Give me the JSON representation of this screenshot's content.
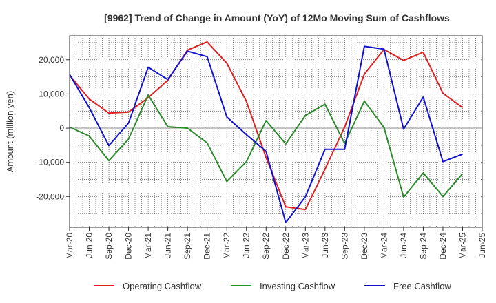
{
  "chart_data": {
    "type": "line",
    "title": "[9962]  Trend of Change in Amount (YoY) of 12Mo Moving Sum of Cashflows",
    "xlabel": "",
    "ylabel": "Amount (million yen)",
    "ylim": [
      -29000,
      27000
    ],
    "yticks": [
      20000,
      10000,
      0,
      -10000,
      -20000
    ],
    "ytick_labels": [
      "20,000",
      "10,000",
      "0",
      "-10,000",
      "-20,000"
    ],
    "x": [
      "Mar-20",
      "Jun-20",
      "Sep-20",
      "Dec-20",
      "Mar-21",
      "Jun-21",
      "Sep-21",
      "Dec-21",
      "Mar-22",
      "Jun-22",
      "Sep-22",
      "Dec-22",
      "Mar-23",
      "Jun-23",
      "Sep-23",
      "Dec-23",
      "Mar-24",
      "Jun-24",
      "Sep-24",
      "Dec-24",
      "Mar-25",
      "Jun-25"
    ],
    "grid": true,
    "legend_position": "bottom",
    "series": [
      {
        "name": "Operating Cashflow",
        "color": "#e02020",
        "values": [
          15500,
          8500,
          4400,
          4700,
          8900,
          14000,
          22800,
          25200,
          19000,
          7800,
          -8600,
          -23000,
          -23800,
          -12000,
          300,
          15800,
          23000,
          19800,
          22200,
          10200,
          6000,
          null
        ]
      },
      {
        "name": "Investing Cashflow",
        "color": "#2a8a2a",
        "values": [
          300,
          -2300,
          -9500,
          -3200,
          9700,
          400,
          0,
          -4300,
          -15600,
          -9800,
          2200,
          -4600,
          3700,
          7000,
          -4500,
          7900,
          200,
          -20200,
          -13100,
          -20000,
          -13300,
          null
        ]
      },
      {
        "name": "Free Cashflow",
        "color": "#1010d0",
        "values": [
          15700,
          6000,
          -5100,
          1500,
          17800,
          14200,
          22500,
          20900,
          3300,
          -1900,
          -6800,
          -27600,
          -20100,
          -6200,
          -6200,
          23900,
          23100,
          -300,
          9100,
          -9800,
          -7600,
          null
        ]
      }
    ]
  }
}
